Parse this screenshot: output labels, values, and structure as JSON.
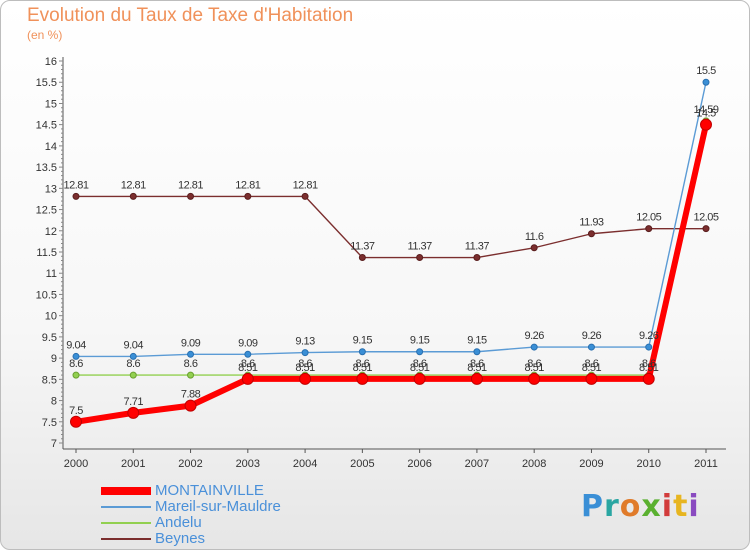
{
  "header": {
    "title": "Evolution du Taux de Taxe d'Habitation",
    "unit": "(en %)"
  },
  "logo": {
    "text": "Proxiti"
  },
  "chart_data": {
    "type": "line",
    "title": "Evolution du Taux de Taxe d'Habitation",
    "ylabel": "(en %)",
    "xlabel": "",
    "x": [
      "2000",
      "2001",
      "2002",
      "2003",
      "2004",
      "2005",
      "2006",
      "2007",
      "2008",
      "2009",
      "2010",
      "2011"
    ],
    "ylim": [
      7,
      16
    ],
    "yticks": [
      "7",
      "7.5",
      "8",
      "8.5",
      "9",
      "9.5",
      "10",
      "10.5",
      "11",
      "11.5",
      "12",
      "12.5",
      "13",
      "13.5",
      "14",
      "14.5",
      "15",
      "15.5",
      "16"
    ],
    "grid": false,
    "legend_position": "bottom-left",
    "series": [
      {
        "name": "MONTAINVILLE",
        "color": "#ff0000",
        "values": [
          7.5,
          7.71,
          7.88,
          8.51,
          8.51,
          8.51,
          8.51,
          8.51,
          8.51,
          8.51,
          8.51,
          14.5
        ],
        "labels": [
          "7.5",
          "7.71",
          "7.88",
          "8.51",
          "8.51",
          "8.51",
          "8.51",
          "8.51",
          "8.51",
          "8.51",
          "8.51",
          "14.5"
        ]
      },
      {
        "name": "Mareil-sur-Mauldre",
        "color": "#5b9bd5",
        "values": [
          9.04,
          9.04,
          9.09,
          9.09,
          9.13,
          9.15,
          9.15,
          9.15,
          9.26,
          9.26,
          9.26,
          15.5
        ],
        "labels": [
          "9.04",
          "9.04",
          "9.09",
          "9.09",
          "9.13",
          "9.15",
          "9.15",
          "9.15",
          "9.26",
          "9.26",
          "9.26",
          "15.5"
        ]
      },
      {
        "name": "Andelu",
        "color": "#92d050",
        "values": [
          8.6,
          8.6,
          8.6,
          8.6,
          8.6,
          8.6,
          8.6,
          8.6,
          8.6,
          8.6,
          8.6,
          14.59
        ],
        "labels": [
          "8.6",
          "8.6",
          "8.6",
          "8.6",
          "8.6",
          "8.6",
          "8.6",
          "8.6",
          "8.6",
          "8.6",
          "8.6",
          "14.59"
        ]
      },
      {
        "name": "Beynes",
        "color": "#7b2e2e",
        "values": [
          12.81,
          12.81,
          12.81,
          12.81,
          12.81,
          11.37,
          11.37,
          11.37,
          11.6,
          11.93,
          12.05,
          12.05
        ],
        "labels": [
          "12.81",
          "12.81",
          "12.81",
          "12.81",
          "12.81",
          "11.37",
          "11.37",
          "11.37",
          "11.6",
          "11.93",
          "12.05",
          "12.05"
        ]
      }
    ]
  }
}
